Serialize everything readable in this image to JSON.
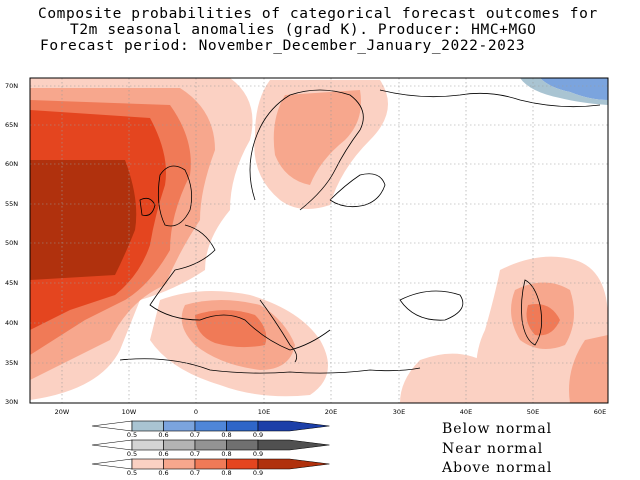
{
  "title": {
    "line1": "Composite probabilities of categorical forecast outcomes for",
    "line2": "T2m seasonal anomalies (grad K). Producer: HMC+MGO",
    "line3": "Forecast period: November_December_January_2022-2023"
  },
  "map": {
    "lat_ticks": [
      "70N",
      "65N",
      "60N",
      "55N",
      "50N",
      "45N",
      "40N",
      "35N",
      "30N"
    ],
    "lon_ticks": [
      "20W",
      "10W",
      "0",
      "10E",
      "20E",
      "30E",
      "40E",
      "50E",
      "60E"
    ],
    "extent": {
      "lon": [
        -25,
        60
      ],
      "lat": [
        30,
        72
      ]
    }
  },
  "legend": {
    "tick_values": [
      "0.5",
      "0.6",
      "0.7",
      "0.8",
      "0.9"
    ],
    "below": {
      "label": "Below normal",
      "colors": [
        "#a9c4d2",
        "#7ba4de",
        "#4f86d8",
        "#2f66c8",
        "#1c3fa8"
      ]
    },
    "near": {
      "label": "Near normal",
      "colors": [
        "#d4d4d4",
        "#b4b4b4",
        "#939393",
        "#707070",
        "#505050"
      ]
    },
    "above": {
      "label": "Above normal",
      "colors": [
        "#fbd1c3",
        "#f7a78d",
        "#f07a57",
        "#e4451f",
        "#b0310d"
      ]
    }
  }
}
